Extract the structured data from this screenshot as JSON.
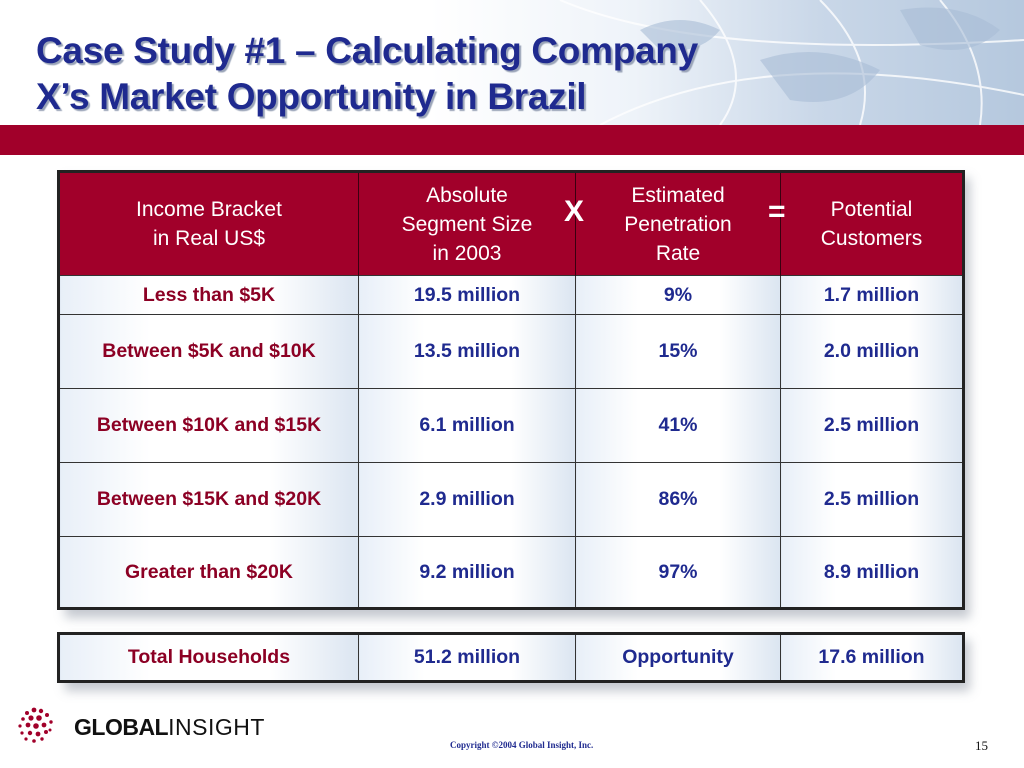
{
  "slide": {
    "title_line1": "Case Study #1 – Calculating Company",
    "title_line2": "X’s Market Opportunity in Brazil",
    "page_number": "15",
    "copyright": "Copyright ©2004 Global Insight, Inc.",
    "logo_bold": "GLOBAL",
    "logo_light": "INSIGHT"
  },
  "colors": {
    "title": "#1f2a8f",
    "band": "#a1002a",
    "label_text": "#8c0024",
    "value_text": "#1f2a8f"
  },
  "table": {
    "headers": [
      {
        "lines": [
          "Income Bracket",
          "in Real US$"
        ]
      },
      {
        "lines": [
          "Absolute",
          "Segment Size",
          "in 2003"
        ]
      },
      {
        "lines": [
          "Estimated",
          "Penetration",
          "Rate"
        ]
      },
      {
        "lines": [
          "Potential",
          "Customers"
        ]
      }
    ],
    "operator_multiply": "X",
    "operator_equals": "=",
    "rows": [
      [
        "Less than $5K",
        "19.5 million",
        "9%",
        "1.7 million"
      ],
      [
        "Between $5K and $10K",
        "13.5 million",
        "15%",
        "2.0 million"
      ],
      [
        "Between $10K and $15K",
        "6.1 million",
        "41%",
        "2.5 million"
      ],
      [
        "Between $15K and $20K",
        "2.9 million",
        "86%",
        "2.5 million"
      ],
      [
        "Greater than $20K",
        "9.2 million",
        "97%",
        "8.9 million"
      ]
    ]
  },
  "totals": [
    "Total Households",
    "51.2 million",
    "Opportunity",
    "17.6 million"
  ]
}
